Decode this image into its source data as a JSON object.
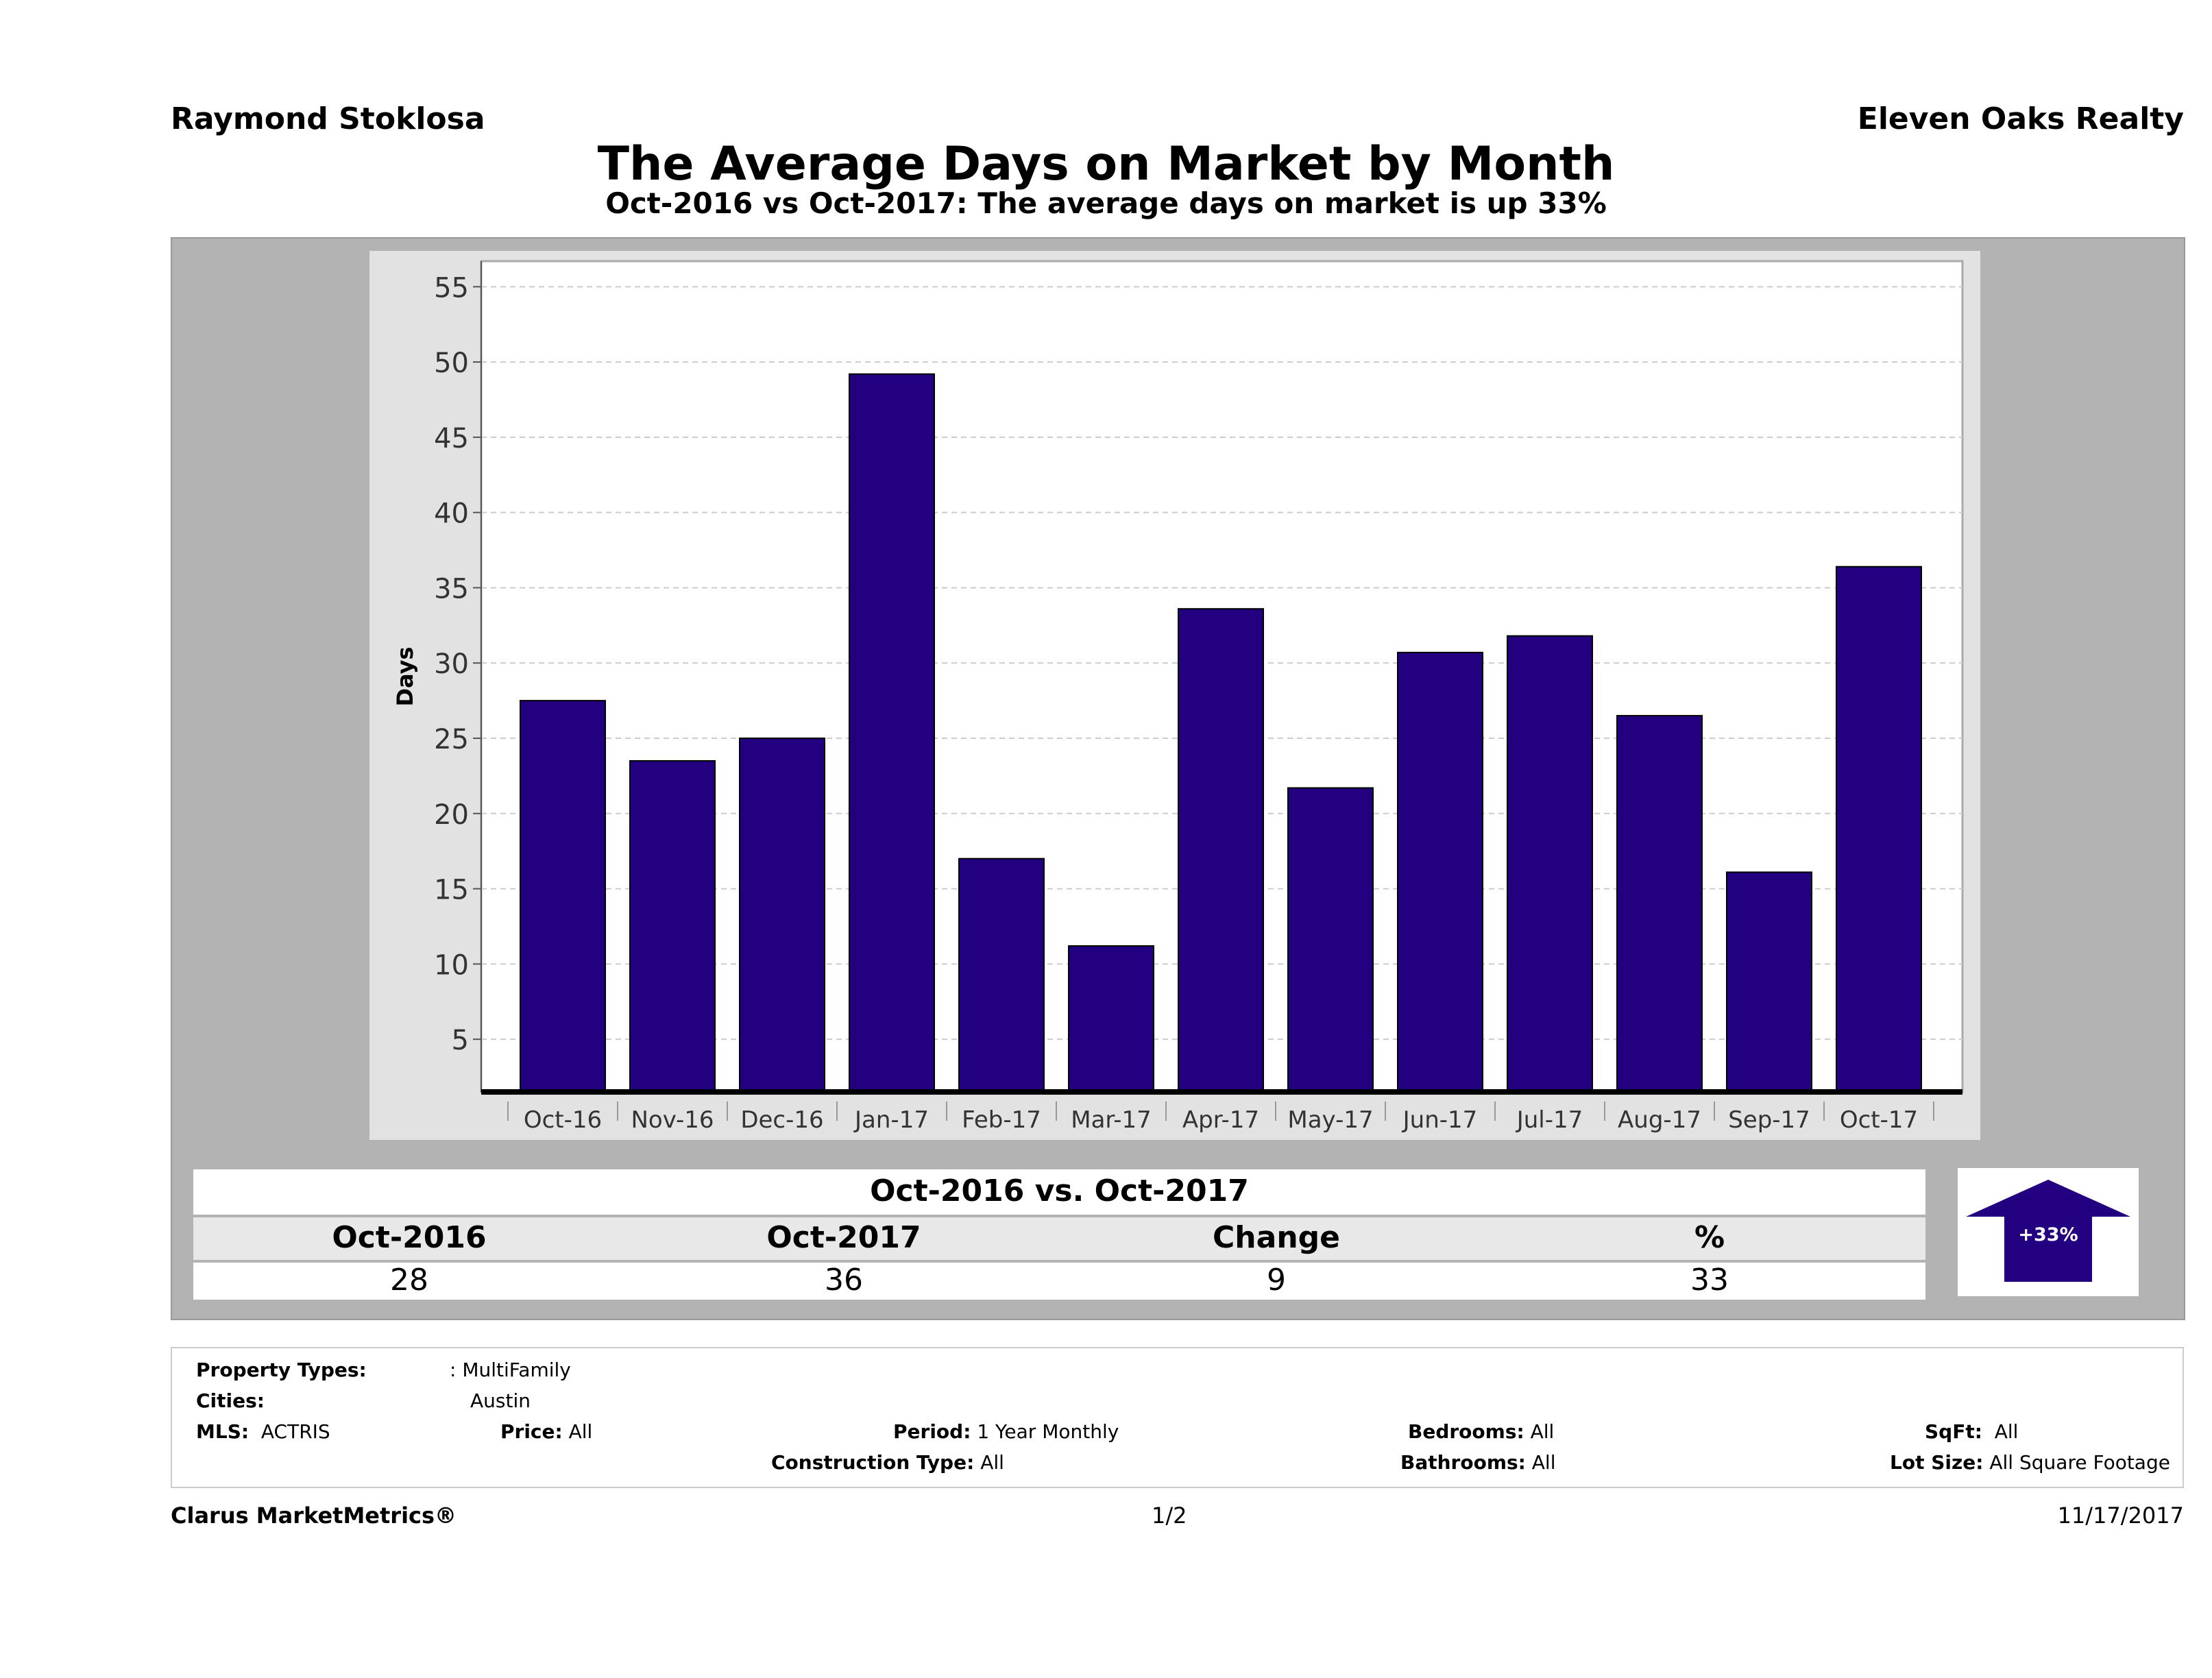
{
  "header": {
    "agent": "Raymond Stoklosa",
    "brokerage": "Eleven Oaks Realty"
  },
  "chart_data": {
    "type": "bar",
    "title": "The Average Days on Market by Month",
    "subtitle": "Oct-2016 vs Oct-2017: The average days on market is up 33%",
    "xlabel": "",
    "ylabel": "Days",
    "categories": [
      "Oct-16",
      "Nov-16",
      "Dec-16",
      "Jan-17",
      "Feb-17",
      "Mar-17",
      "Apr-17",
      "May-17",
      "Jun-17",
      "Jul-17",
      "Aug-17",
      "Sep-17",
      "Oct-17"
    ],
    "values": [
      27.5,
      23.5,
      25.0,
      49.2,
      17.0,
      11.2,
      33.6,
      21.7,
      30.7,
      31.8,
      26.5,
      16.1,
      36.4
    ],
    "yticks": [
      5,
      10,
      15,
      20,
      25,
      30,
      35,
      40,
      45,
      50,
      55
    ],
    "ylim": [
      1.5,
      56.7
    ],
    "grid": true,
    "bar_color": "#22007f"
  },
  "summary": {
    "title": "Oct-2016 vs. Oct-2017",
    "headers": [
      "Oct-2016",
      "Oct-2017",
      "Change",
      "%"
    ],
    "values": [
      "28",
      "36",
      "9",
      "33"
    ],
    "badge": "+33%",
    "badge_icon": "up-arrow-icon"
  },
  "filters": {
    "property_types_label": "Property Types:",
    "property_types": ": MultiFamily",
    "cities_label": "Cities:",
    "cities": "Austin",
    "mls_label": "MLS:",
    "mls": "ACTRIS",
    "price_label": "Price:",
    "price": "All",
    "period_label": "Period:",
    "period": "1 Year Monthly",
    "construction_label": "Construction Type:",
    "construction": "All",
    "bedrooms_label": "Bedrooms:",
    "bedrooms": "All",
    "bathrooms_label": "Bathrooms:",
    "bathrooms": "All",
    "sqft_label": "SqFt:",
    "sqft": "All",
    "lot_label": "Lot Size:",
    "lot": "All Square Footage"
  },
  "footer": {
    "brand": "Clarus MarketMetrics®",
    "page": "1/2",
    "date": "11/17/2017"
  }
}
